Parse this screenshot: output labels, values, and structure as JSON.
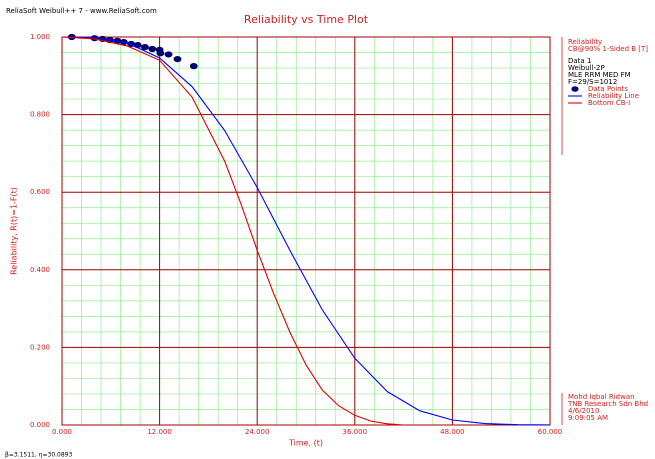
{
  "chart_data": {
    "type": "line",
    "header": "ReliaSoft Weibull++ 7 - www.ReliaSoft.com",
    "title": "Reliability vs Time Plot",
    "x_label": "Time, (t)",
    "y_label": "Reliability, R(t)=1-F(t)",
    "xlim": [
      0,
      60
    ],
    "ylim": [
      0,
      1
    ],
    "xticks": [
      {
        "value": 0,
        "label": "0.000"
      },
      {
        "value": 12,
        "label": "12.000"
      },
      {
        "value": 24,
        "label": "24.000"
      },
      {
        "value": 36,
        "label": "36.000"
      },
      {
        "value": 48,
        "label": "48.000"
      },
      {
        "value": 60,
        "label": "60.000"
      }
    ],
    "yticks": [
      {
        "value": 0,
        "label": "0.000"
      },
      {
        "value": 0.2,
        "label": "0.200"
      },
      {
        "value": 0.4,
        "label": "0.400"
      },
      {
        "value": 0.6,
        "label": "0.600"
      },
      {
        "value": 0.8,
        "label": "0.800"
      },
      {
        "value": 1,
        "label": "1.000"
      }
    ],
    "grid": true,
    "grid_color": "#a00000",
    "minor_grid": 5,
    "minor_grid_color": "#90ee90",
    "legend_title": [
      "Reliability",
      "CB@90% 1-Sided B [T]"
    ],
    "legend_info": [
      "Data 1",
      "Weibull-2P",
      "MLE RRM MED FM",
      "F=29/S=1012"
    ],
    "footer": [
      "Mohd Iqbal Ridwan",
      "TNB Research Sdn Bhd",
      "4/6/2010",
      "9:09:05 AM"
    ],
    "parameters": "β=3.1511, η=30.0893",
    "series": [
      {
        "name": "Data Points",
        "color": "#000080",
        "markers_only": true,
        "x": [
          1.2,
          4.0,
          5.0,
          5.9,
          6.8,
          7.6,
          8.5,
          9.3,
          10.2,
          11.1,
          12.0,
          12.1,
          13.1,
          14.2,
          16.2
        ],
        "values": [
          1.0,
          0.997,
          0.995,
          0.992,
          0.99,
          0.987,
          0.982,
          0.979,
          0.974,
          0.969,
          0.967,
          0.958,
          0.955,
          0.943,
          0.925
        ]
      },
      {
        "name": "Reliability Line",
        "color": "#0000ff",
        "x": [
          0,
          4,
          8,
          12,
          16,
          20,
          24,
          28,
          32,
          36,
          40,
          44,
          48,
          52,
          56,
          60
        ],
        "values": [
          1,
          0.998,
          0.985,
          0.946,
          0.872,
          0.759,
          0.612,
          0.451,
          0.297,
          0.172,
          0.086,
          0.0365,
          0.0129,
          0.0037,
          0.0008,
          0.0002
        ]
      },
      {
        "name": "Bottom CB-I",
        "color": "#e00000",
        "x": [
          0,
          4,
          8,
          12,
          16,
          20,
          22,
          24,
          26,
          28,
          30,
          32,
          34,
          36,
          38,
          40,
          42
        ],
        "values": [
          1,
          0.995,
          0.977,
          0.94,
          0.845,
          0.68,
          0.57,
          0.45,
          0.34,
          0.24,
          0.155,
          0.09,
          0.05,
          0.025,
          0.01,
          0.003,
          0
        ]
      }
    ]
  }
}
